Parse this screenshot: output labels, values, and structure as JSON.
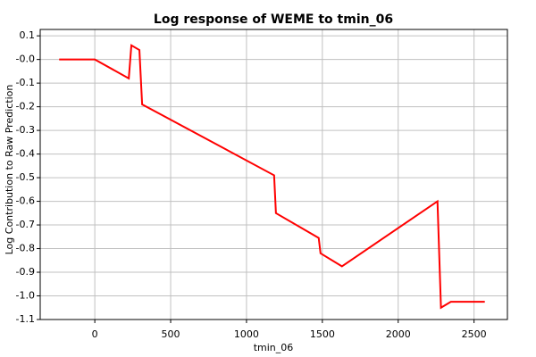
{
  "chart_data": {
    "type": "line",
    "title": "Log response of WEME to tmin_06",
    "xlabel": "tmin_06",
    "ylabel": "Log Contribution to Raw Prediction",
    "x": [
      -235,
      0,
      224,
      241,
      294,
      312,
      1182,
      1194,
      1476,
      1488,
      1629,
      2259,
      2282,
      2347,
      2571
    ],
    "series": [
      {
        "color": "#ff0000",
        "values": [
          0,
          0,
          -0.08,
          0.06,
          0.04,
          -0.19,
          -0.49,
          -0.65,
          -0.755,
          -0.82,
          -0.875,
          -0.6,
          -1.05,
          -1.025,
          -1.025
        ]
      }
    ],
    "xlim": [
      -360,
      2720
    ],
    "ylim": [
      -1.1,
      0.127
    ],
    "xticks": [
      0,
      500,
      1000,
      1500,
      2000,
      2500
    ],
    "yticks": [
      0.1,
      {
        "value": 0,
        "label": "-0.0"
      },
      -0.1,
      -0.2,
      -0.3,
      -0.4,
      -0.5,
      -0.6,
      -0.7,
      -0.8,
      -0.9,
      {
        "value": -1,
        "label": "-1.0"
      },
      -1.1
    ],
    "grid": true
  }
}
